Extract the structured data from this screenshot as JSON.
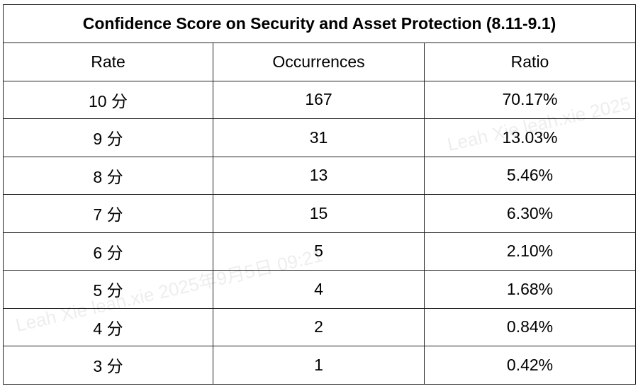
{
  "table": {
    "title": "Confidence Score on Security and Asset Protection (8.11-9.1)",
    "headers": [
      "Rate",
      "Occurrences",
      "Ratio"
    ],
    "rows": [
      [
        "10 分",
        "167",
        "70.17%"
      ],
      [
        "9 分",
        "31",
        "13.03%"
      ],
      [
        "8 分",
        "13",
        "5.46%"
      ],
      [
        "7 分",
        "15",
        "6.30%"
      ],
      [
        "6 分",
        "5",
        "2.10%"
      ],
      [
        "5 分",
        "4",
        "1.68%"
      ],
      [
        "4 分",
        "2",
        "0.84%"
      ],
      [
        "3 分",
        "1",
        "0.42%"
      ]
    ]
  },
  "watermark": {
    "text_1": "Leah Xie leah.xie 2025",
    "text_2": "Leah Xie leah.xie 2025年9月5日 09:21"
  }
}
